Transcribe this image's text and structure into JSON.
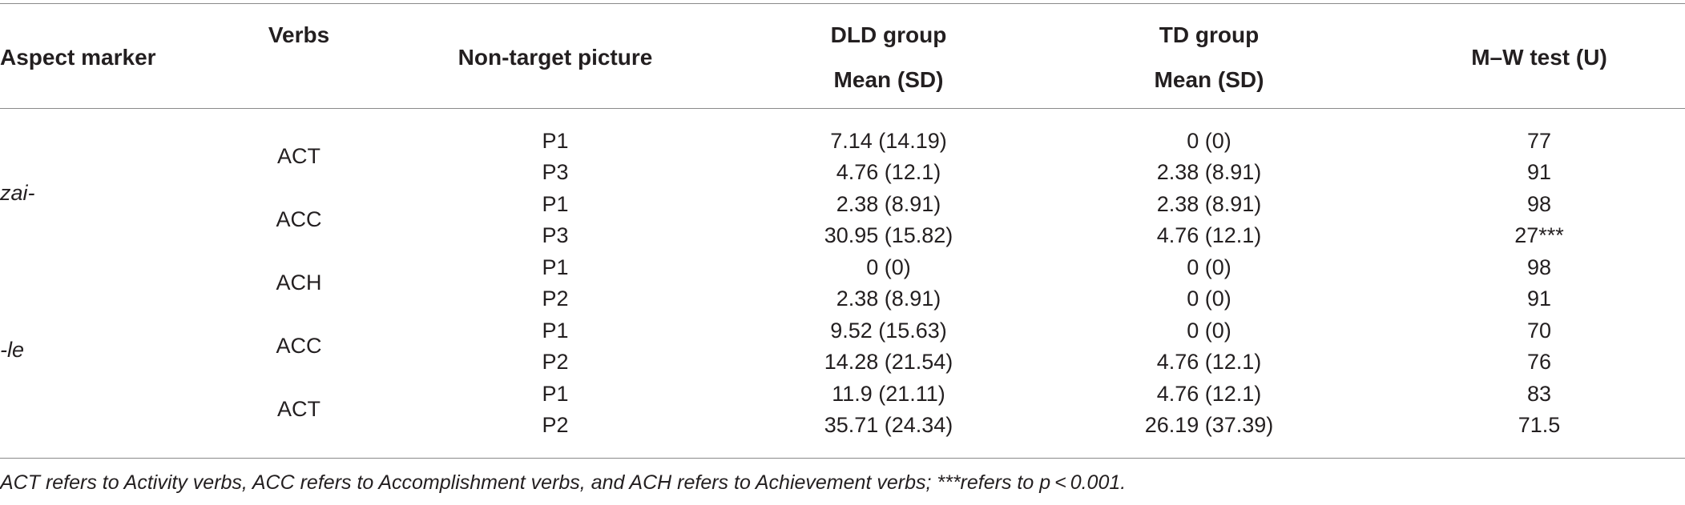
{
  "table": {
    "headers": {
      "aspect_marker": "Aspect marker",
      "verbs": "Verbs",
      "non_target_picture": "Non-target picture",
      "dld_group_line1": "DLD group",
      "dld_group_line2": "Mean (SD)",
      "td_group_line1": "TD group",
      "td_group_line2": "Mean (SD)",
      "mw_test": "M–W test (U)"
    },
    "aspect_markers": [
      "zai-",
      "-le"
    ],
    "verb_groups": [
      "ACT",
      "ACC",
      "ACH",
      "ACC",
      "ACT"
    ],
    "rows": [
      {
        "picture": "P1",
        "dld": "7.14 (14.19)",
        "td": "0 (0)",
        "u": "77"
      },
      {
        "picture": "P3",
        "dld": "4.76 (12.1)",
        "td": "2.38 (8.91)",
        "u": "91"
      },
      {
        "picture": "P1",
        "dld": "2.38 (8.91)",
        "td": "2.38 (8.91)",
        "u": "98"
      },
      {
        "picture": "P3",
        "dld": "30.95 (15.82)",
        "td": "4.76 (12.1)",
        "u": "27***"
      },
      {
        "picture": "P1",
        "dld": "0 (0)",
        "td": "0 (0)",
        "u": "98"
      },
      {
        "picture": "P2",
        "dld": "2.38 (8.91)",
        "td": "0 (0)",
        "u": "91"
      },
      {
        "picture": "P1",
        "dld": "9.52 (15.63)",
        "td": "0 (0)",
        "u": "70"
      },
      {
        "picture": "P2",
        "dld": "14.28 (21.54)",
        "td": "4.76 (12.1)",
        "u": "76"
      },
      {
        "picture": "P1",
        "dld": "11.9 (21.11)",
        "td": "4.76 (12.1)",
        "u": "83"
      },
      {
        "picture": "P2",
        "dld": "35.71 (24.34)",
        "td": "26.19 (37.39)",
        "u": "71.5"
      }
    ]
  },
  "footnote": "ACT refers to Activity verbs, ACC refers to Accomplishment verbs, and ACH refers to Achievement verbs; ***refers to p < 0.001."
}
